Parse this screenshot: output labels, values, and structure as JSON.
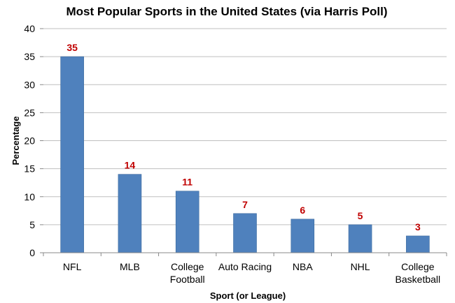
{
  "chart_data": {
    "type": "bar",
    "title": "Most Popular Sports in the United States (via Harris Poll)",
    "xlabel": "Sport (or League)",
    "ylabel": "Percentage",
    "categories": [
      [
        "NFL"
      ],
      [
        "MLB"
      ],
      [
        "College",
        "Football"
      ],
      [
        "Auto Racing"
      ],
      [
        "NBA"
      ],
      [
        "NHL"
      ],
      [
        "College",
        "Basketball"
      ]
    ],
    "values": [
      35,
      14,
      11,
      7,
      6,
      5,
      3
    ],
    "data_labels": [
      "35",
      "14",
      "11",
      "7",
      "6",
      "5",
      "3"
    ],
    "ylim": [
      0,
      40
    ],
    "yticks": [
      "0",
      "5",
      "10",
      "15",
      "20",
      "25",
      "30",
      "35",
      "40"
    ],
    "grid": true,
    "legend": "none",
    "colors": {
      "bar": "#4F81BD",
      "bar_edge": "#3C6A9E",
      "data_label": "#C00000",
      "gridline": "#BFBFBF",
      "axis": "#888888"
    }
  }
}
